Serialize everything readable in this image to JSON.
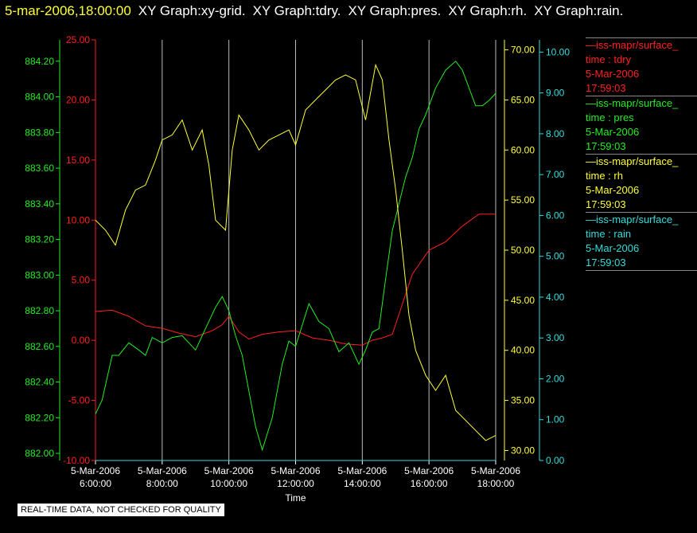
{
  "header": {
    "timestamp": "5-mar-2006,18:00:00",
    "graphs": [
      "XY Graph:xy-grid.",
      "XY Graph:tdry.",
      "XY Graph:pres.",
      "XY Graph:rh.",
      "XY Graph:rain."
    ]
  },
  "colors": {
    "tdry": "#ff2020",
    "pres": "#22ee22",
    "rh": "#ffff33",
    "rain": "#33dddd",
    "grid": "#bbbbbb",
    "text": "#ffffff"
  },
  "legend": [
    {
      "series": "tdry",
      "line1": "—iss-mapr/surface_",
      "line2": "time : tdry",
      "line3": "5-Mar-2006",
      "line4": "17:59:03"
    },
    {
      "series": "pres",
      "line1": "—iss-mapr/surface_",
      "line2": "time : pres",
      "line3": "5-Mar-2006",
      "line4": "17:59:03"
    },
    {
      "series": "rh",
      "line1": "—iss-mapr/surface_",
      "line2": "time : rh",
      "line3": "5-Mar-2006",
      "line4": "17:59:03"
    },
    {
      "series": "rain",
      "line1": "—iss-mapr/surface_",
      "line2": "time : rain",
      "line3": "5-Mar-2006",
      "line4": "17:59:03"
    }
  ],
  "disclaimer": "REAL-TIME DATA, NOT CHECKED FOR QUALITY",
  "chart_data": {
    "type": "line",
    "xlabel": "Time",
    "x_ticks": [
      {
        "date": "5-Mar-2006",
        "time": "6:00:00",
        "hour": 6
      },
      {
        "date": "5-Mar-2006",
        "time": "8:00:00",
        "hour": 8
      },
      {
        "date": "5-Mar-2006",
        "time": "10:00:00",
        "hour": 10
      },
      {
        "date": "5-Mar-2006",
        "time": "12:00:00",
        "hour": 12
      },
      {
        "date": "5-Mar-2006",
        "time": "14:00:00",
        "hour": 14
      },
      {
        "date": "5-Mar-2006",
        "time": "16:00:00",
        "hour": 16
      },
      {
        "date": "5-Mar-2006",
        "time": "18:00:00",
        "hour": 18
      }
    ],
    "xlim": [
      6,
      18
    ],
    "grid": true,
    "axes": {
      "tdry": {
        "ylim": [
          -10,
          25
        ],
        "ticks": [
          "-10.00",
          "-5.00",
          "0.00",
          "5.00",
          "10.00",
          "15.00",
          "20.00",
          "25.00"
        ]
      },
      "pres": {
        "ylim": [
          881.96,
          884.32
        ],
        "ticks": [
          "882.00",
          "882.20",
          "882.40",
          "882.60",
          "882.80",
          "883.00",
          "883.20",
          "883.40",
          "883.60",
          "883.80",
          "884.00",
          "884.20"
        ]
      },
      "rh": {
        "ylim": [
          29,
          71
        ],
        "ticks": [
          "30.00",
          "35.00",
          "40.00",
          "45.00",
          "50.00",
          "55.00",
          "60.00",
          "65.00",
          "70.00"
        ]
      },
      "rain": {
        "ylim": [
          0,
          10.3
        ],
        "ticks": [
          "0.00",
          "1.00",
          "2.00",
          "3.00",
          "4.00",
          "5.00",
          "6.00",
          "7.00",
          "8.00",
          "9.00",
          "10.00"
        ]
      }
    },
    "series": [
      {
        "key": "tdry",
        "x": [
          6.0,
          6.5,
          7.0,
          7.5,
          8.0,
          8.5,
          9.0,
          9.5,
          9.8,
          10.0,
          10.3,
          10.6,
          11.0,
          11.5,
          12.0,
          12.5,
          13.0,
          13.5,
          14.0,
          14.3,
          14.6,
          14.9,
          15.2,
          15.5,
          16.0,
          16.5,
          17.0,
          17.5,
          18.0
        ],
        "values": [
          2.4,
          2.5,
          2.0,
          1.2,
          1.0,
          0.6,
          0.3,
          0.8,
          1.3,
          2.0,
          0.7,
          0.1,
          0.5,
          0.7,
          0.8,
          0.2,
          0.0,
          -0.3,
          -0.4,
          0.0,
          0.2,
          0.5,
          3.0,
          5.5,
          7.5,
          8.2,
          9.5,
          10.5,
          10.5
        ]
      },
      {
        "key": "pres",
        "x": [
          6.0,
          6.2,
          6.5,
          6.7,
          7.0,
          7.3,
          7.5,
          7.7,
          8.0,
          8.3,
          8.6,
          9.0,
          9.3,
          9.6,
          9.8,
          10.0,
          10.2,
          10.4,
          10.6,
          10.8,
          11.0,
          11.3,
          11.6,
          11.8,
          12.0,
          12.2,
          12.4,
          12.7,
          13.0,
          13.3,
          13.6,
          13.9,
          14.1,
          14.3,
          14.5,
          14.7,
          14.9,
          15.1,
          15.3,
          15.5,
          15.7,
          15.9,
          16.2,
          16.5,
          16.8,
          17.0,
          17.2,
          17.4,
          17.6,
          17.8,
          18.0
        ],
        "values": [
          882.22,
          882.3,
          882.55,
          882.55,
          882.62,
          882.58,
          882.55,
          882.65,
          882.62,
          882.65,
          882.66,
          882.58,
          882.7,
          882.82,
          882.88,
          882.8,
          882.66,
          882.55,
          882.35,
          882.15,
          882.02,
          882.2,
          882.5,
          882.63,
          882.6,
          882.72,
          882.84,
          882.74,
          882.7,
          882.57,
          882.62,
          882.5,
          882.58,
          882.68,
          882.7,
          882.98,
          883.25,
          883.4,
          883.55,
          883.66,
          883.82,
          883.9,
          884.05,
          884.15,
          884.2,
          884.15,
          884.05,
          883.95,
          883.95,
          883.98,
          884.02
        ]
      },
      {
        "key": "rh",
        "x": [
          6.0,
          6.3,
          6.6,
          6.9,
          7.2,
          7.5,
          7.8,
          8.0,
          8.3,
          8.6,
          8.9,
          9.2,
          9.4,
          9.6,
          9.9,
          10.1,
          10.3,
          10.6,
          10.9,
          11.2,
          11.5,
          11.8,
          12.0,
          12.3,
          12.6,
          12.9,
          13.2,
          13.5,
          13.8,
          14.1,
          14.4,
          14.6,
          14.8,
          15.0,
          15.2,
          15.4,
          15.6,
          15.9,
          16.2,
          16.5,
          16.8,
          17.1,
          17.4,
          17.7,
          18.0
        ],
        "values": [
          53,
          52,
          50.5,
          54,
          56,
          56.5,
          59,
          61,
          61.5,
          63,
          60,
          62,
          58.5,
          53,
          52,
          60,
          63.5,
          62,
          60,
          61,
          61.5,
          62,
          60.5,
          64,
          65,
          66,
          67,
          67.5,
          67,
          63,
          68.5,
          67,
          61,
          56,
          50,
          43.5,
          40,
          37.5,
          36,
          37.5,
          34,
          33,
          32,
          31,
          31.5
        ]
      },
      {
        "key": "rain",
        "x": [
          6.0,
          18.0
        ],
        "values": [
          0.0,
          0.0
        ]
      }
    ]
  }
}
